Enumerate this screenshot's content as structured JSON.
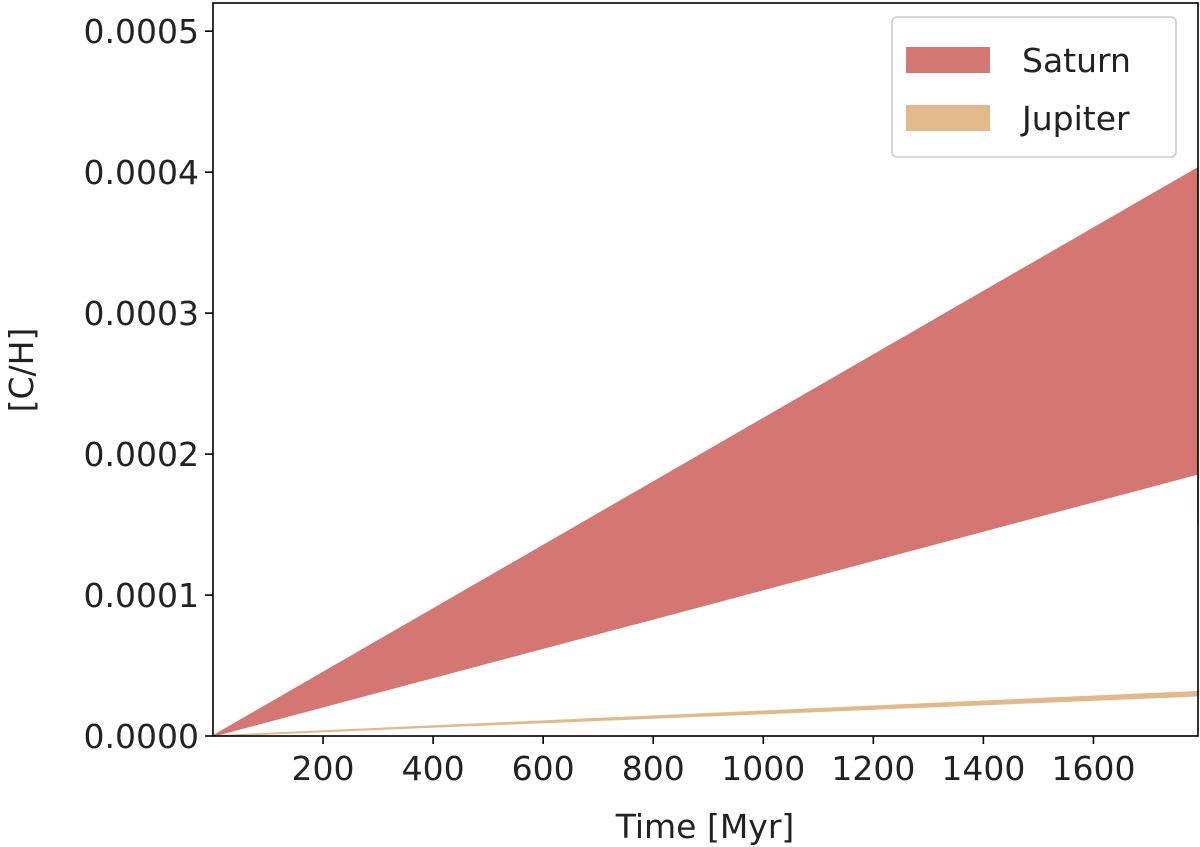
{
  "chart_data": {
    "type": "area",
    "xlabel": "Time [Myr]",
    "ylabel": "[C/H]",
    "xlim": [
      0,
      1790
    ],
    "ylim": [
      0,
      0.00052
    ],
    "xticks": [
      200,
      400,
      600,
      800,
      1000,
      1200,
      1400,
      1600
    ],
    "xtick_labels": [
      "200",
      "400",
      "600",
      "800",
      "1000",
      "1200",
      "1400",
      "1600"
    ],
    "yticks": [
      0,
      0.0001,
      0.0002,
      0.0003,
      0.0004,
      0.0005
    ],
    "ytick_labels": [
      "0.0000",
      "0.0001",
      "0.0002",
      "0.0003",
      "0.0004",
      "0.0005"
    ],
    "grid": false,
    "legend_position": "top-right",
    "series": [
      {
        "name": "Saturn",
        "color": "#d47672",
        "x": [
          0,
          1790
        ],
        "lower": [
          0,
          0.000186
        ],
        "upper": [
          0,
          0.000403
        ],
        "end_drop": 0.00015
      },
      {
        "name": "Jupiter",
        "color": "#e2b98b",
        "x": [
          0,
          1790
        ],
        "lower": [
          0,
          2.85e-05
        ],
        "upper": [
          0,
          3.15e-05
        ]
      }
    ]
  }
}
